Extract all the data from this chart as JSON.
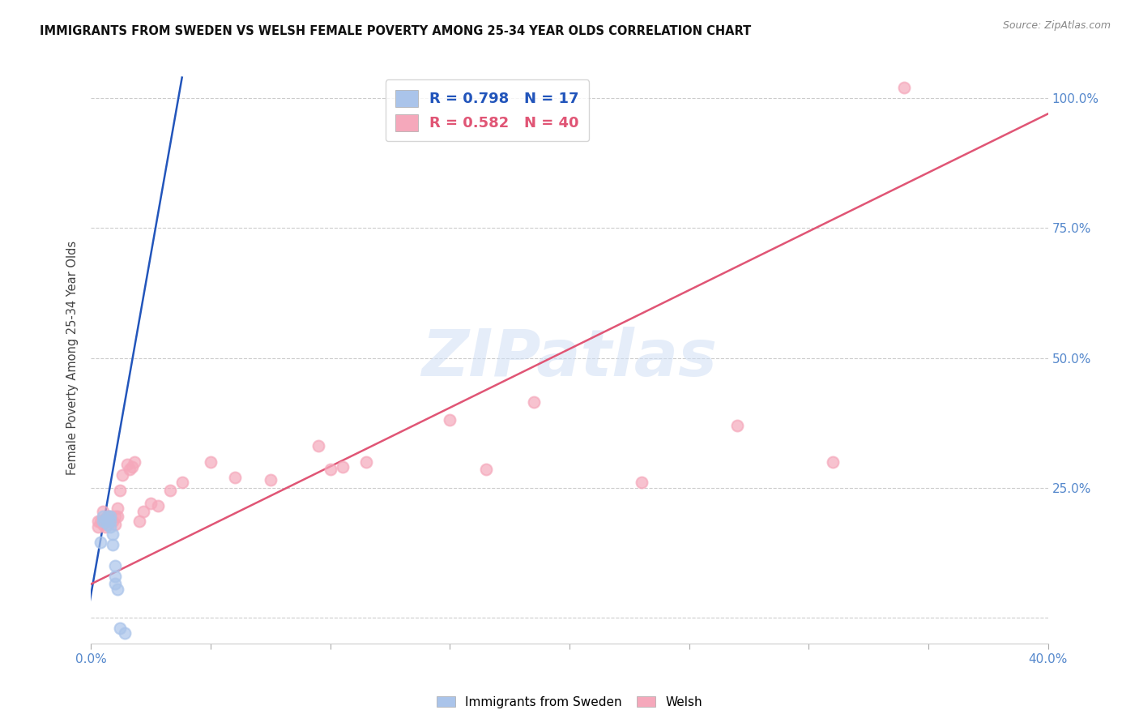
{
  "title": "IMMIGRANTS FROM SWEDEN VS WELSH FEMALE POVERTY AMONG 25-34 YEAR OLDS CORRELATION CHART",
  "source": "Source: ZipAtlas.com",
  "ylabel": "Female Poverty Among 25-34 Year Olds",
  "xlim": [
    0.0,
    0.4
  ],
  "ylim": [
    -0.05,
    1.05
  ],
  "sweden_R": 0.798,
  "sweden_N": 17,
  "welsh_R": 0.582,
  "welsh_N": 40,
  "sweden_color": "#aac4ea",
  "welsh_color": "#f5a8bb",
  "sweden_line_color": "#2255bb",
  "welsh_line_color": "#e05575",
  "watermark_text": "ZIPatlas",
  "sweden_x": [
    0.004,
    0.005,
    0.005,
    0.006,
    0.007,
    0.007,
    0.008,
    0.008,
    0.008,
    0.009,
    0.009,
    0.01,
    0.01,
    0.01,
    0.011,
    0.012,
    0.014
  ],
  "sweden_y": [
    0.145,
    0.195,
    0.185,
    0.185,
    0.195,
    0.18,
    0.195,
    0.185,
    0.175,
    0.16,
    0.14,
    0.1,
    0.08,
    0.065,
    0.055,
    -0.02,
    -0.03
  ],
  "welsh_x": [
    0.003,
    0.003,
    0.004,
    0.005,
    0.005,
    0.006,
    0.006,
    0.007,
    0.008,
    0.009,
    0.01,
    0.01,
    0.011,
    0.011,
    0.012,
    0.013,
    0.015,
    0.016,
    0.017,
    0.018,
    0.02,
    0.022,
    0.025,
    0.028,
    0.033,
    0.038,
    0.05,
    0.06,
    0.075,
    0.095,
    0.1,
    0.105,
    0.115,
    0.15,
    0.165,
    0.185,
    0.23,
    0.27,
    0.31,
    0.34
  ],
  "welsh_y": [
    0.185,
    0.175,
    0.185,
    0.205,
    0.18,
    0.19,
    0.175,
    0.195,
    0.195,
    0.185,
    0.195,
    0.18,
    0.21,
    0.195,
    0.245,
    0.275,
    0.295,
    0.285,
    0.29,
    0.3,
    0.185,
    0.205,
    0.22,
    0.215,
    0.245,
    0.26,
    0.3,
    0.27,
    0.265,
    0.33,
    0.285,
    0.29,
    0.3,
    0.38,
    0.285,
    0.415,
    0.26,
    0.37,
    0.3,
    1.02
  ],
  "sweden_line_x": [
    -0.001,
    0.038
  ],
  "sweden_line_y": [
    0.02,
    1.04
  ],
  "welsh_line_x": [
    -0.002,
    0.4
  ],
  "welsh_line_y": [
    0.06,
    0.97
  ],
  "x_tick_positions": [
    0.0,
    0.05,
    0.1,
    0.15,
    0.2,
    0.25,
    0.3,
    0.35,
    0.4
  ],
  "x_tick_labels": [
    "0.0%",
    "",
    "",
    "",
    "",
    "",
    "",
    "",
    "40.0%"
  ],
  "y_tick_positions": [
    0.0,
    0.25,
    0.5,
    0.75,
    1.0
  ],
  "y_tick_labels_right": [
    "",
    "25.0%",
    "50.0%",
    "75.0%",
    "100.0%"
  ],
  "background_color": "#ffffff",
  "grid_color": "#cccccc",
  "tick_color": "#5588cc",
  "title_color": "#111111",
  "marker_size": 100,
  "marker_lw": 1.5
}
